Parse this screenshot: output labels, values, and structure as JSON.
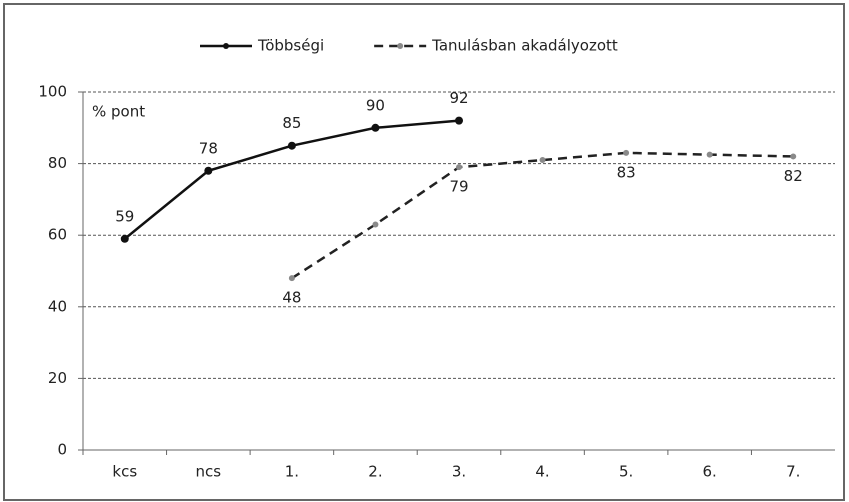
{
  "chart_data": {
    "type": "line",
    "y_label": "% pont",
    "categories": [
      "kcs",
      "ncs",
      "1.",
      "2.",
      "3.",
      "4.",
      "5.",
      "6.",
      "7."
    ],
    "series": [
      {
        "name": "Többségi",
        "color": "#111111",
        "dash": false,
        "marker_color": "#111111",
        "values": [
          59,
          78,
          85,
          90,
          92,
          null,
          null,
          null,
          null
        ],
        "value_labels": [
          "59",
          "78",
          "85",
          "90",
          "92",
          null,
          null,
          null,
          null
        ],
        "label_side": "above"
      },
      {
        "name": "Tanulásban akadályozott",
        "color": "#222222",
        "dash": true,
        "marker_color": "#8a8a8a",
        "values": [
          null,
          null,
          48,
          63,
          79,
          81,
          83,
          82.5,
          82
        ],
        "value_labels": [
          null,
          null,
          "48",
          null,
          "79",
          null,
          "83",
          null,
          "82"
        ],
        "label_side": "below"
      }
    ],
    "ylim": [
      0,
      100
    ],
    "yticks": [
      0,
      20,
      40,
      60,
      80,
      100
    ],
    "grid": true,
    "legend": "top"
  }
}
